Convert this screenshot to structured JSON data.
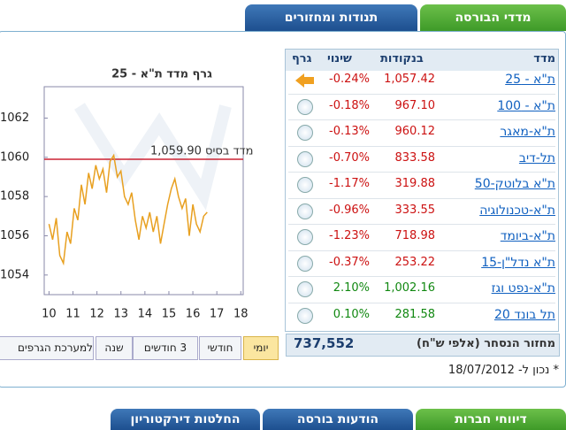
{
  "tabs": [
    "מדדי הבורסה",
    "תנודות ומחזורים"
  ],
  "table": {
    "headers": [
      "מדד",
      "בנקודות",
      "שינוי",
      "גרף"
    ],
    "rows": [
      [
        "ת\"א - 25",
        "1,057.42",
        "-0.24%"
      ],
      [
        "ת\"א - 100",
        "967.10",
        "-0.18%"
      ],
      [
        "ת\"א-מאגר",
        "960.12",
        "-0.13%"
      ],
      [
        "תל-דיב",
        "833.58",
        "-0.70%"
      ],
      [
        "ת\"א בלוטק-50",
        "319.88",
        "-1.17%"
      ],
      [
        "ת\"א-טכנולוגיה",
        "333.55",
        "-0.96%"
      ],
      [
        "ת\"א-ביומד",
        "718.98",
        "-1.23%"
      ],
      [
        "ת\"א נדל\"ן-15",
        "253.22",
        "-0.37%"
      ],
      [
        "ת\"א-נפט וגז",
        "1,002.16",
        "2.10%"
      ],
      [
        "תל בונד 20",
        "281.58",
        "0.10%"
      ]
    ],
    "footer": {
      "label": "מחזור הנסחר (אלפי ש\"ח)",
      "value": "737,552"
    }
  },
  "note": "* נכון ל- 18/07/2012",
  "chart": {
    "title": "גרף מדד ת\"א - 25",
    "color": "#e8a020",
    "base_color": "#cc2233",
    "base": {
      "value": 1059.9,
      "label": "מדד בסיס 1,059.90"
    },
    "ylim": [
      1053,
      1063.6
    ],
    "yticks": [
      1054,
      1056,
      1058,
      1060,
      1062
    ],
    "xlim": [
      9.8,
      18.1
    ],
    "xticks": [
      10,
      11,
      12,
      13,
      14,
      15,
      16,
      17,
      18
    ],
    "line": {
      "x": [
        10.0,
        10.15,
        10.3,
        10.45,
        10.6,
        10.75,
        10.9,
        11.05,
        11.2,
        11.35,
        11.5,
        11.65,
        11.8,
        11.95,
        12.1,
        12.25,
        12.4,
        12.55,
        12.7,
        12.85,
        13.0,
        13.15,
        13.3,
        13.45,
        13.6,
        13.75,
        13.9,
        14.05,
        14.2,
        14.35,
        14.5,
        14.65,
        14.8,
        14.95,
        15.1,
        15.25,
        15.4,
        15.55,
        15.7,
        15.85,
        16.0,
        16.15,
        16.3,
        16.45,
        16.6
      ],
      "y": [
        1056.6,
        1055.8,
        1056.9,
        1055.0,
        1054.6,
        1056.2,
        1055.6,
        1057.4,
        1056.8,
        1058.6,
        1057.6,
        1059.2,
        1058.4,
        1059.6,
        1058.9,
        1059.4,
        1058.2,
        1059.8,
        1060.1,
        1059.0,
        1059.3,
        1058.0,
        1057.6,
        1058.2,
        1056.8,
        1055.8,
        1057.0,
        1056.4,
        1057.2,
        1056.2,
        1057.0,
        1055.6,
        1056.6,
        1057.6,
        1058.4,
        1058.9,
        1058.0,
        1057.4,
        1057.9,
        1056.0,
        1057.6,
        1056.6,
        1056.2,
        1057.0,
        1057.2
      ]
    }
  },
  "periods": [
    "יומי",
    "חודשי",
    "3 חודשים",
    "שנה",
    "למערכת הגרפים"
  ],
  "bottom_tabs": [
    "דיווחי חברות",
    "הודעות בורסה",
    "החלטות דירקטוריון"
  ]
}
